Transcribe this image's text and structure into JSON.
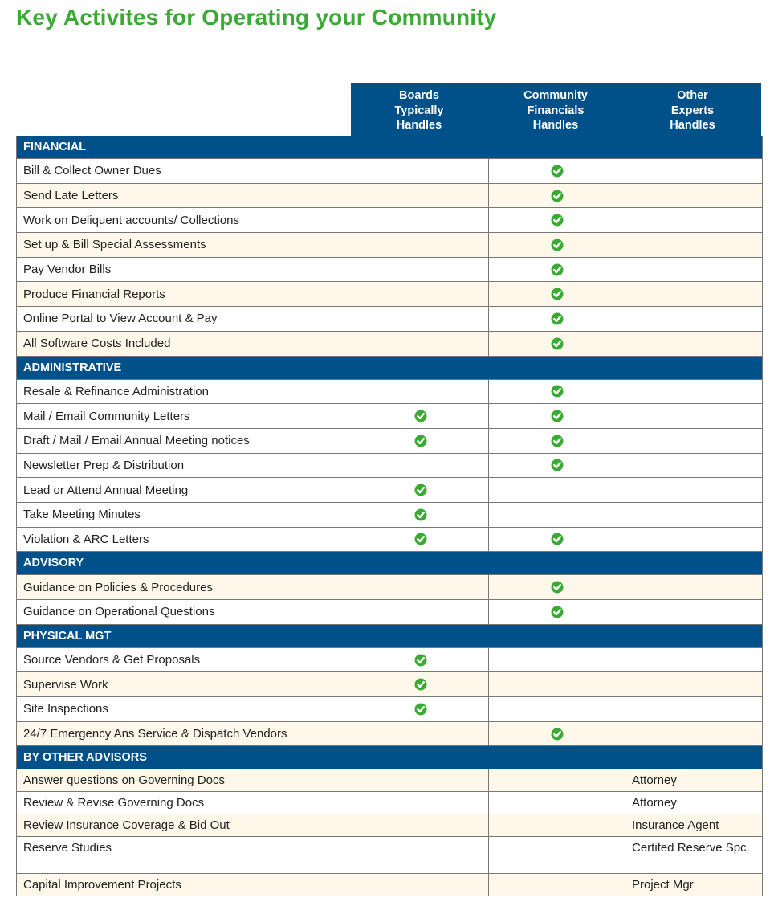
{
  "title": "Key Activites for Operating your Community",
  "colors": {
    "title": "#3aaa35",
    "header": "#00508a",
    "check": "#3aaa35",
    "shade": "#fdf8e9"
  },
  "columns": [
    "Boards\nTypically\nHandles",
    "Community\nFinancials\nHandles",
    "Other\nExperts\nHandles"
  ],
  "check_icon": "green-check-circle-icon",
  "sections": [
    {
      "name": "FINANCIAL",
      "rows": [
        {
          "label": "Bill & Collect Owner Dues",
          "boards": false,
          "cf": true,
          "other": "",
          "shaded": false
        },
        {
          "label": "Send Late Letters",
          "boards": false,
          "cf": true,
          "other": "",
          "shaded": true
        },
        {
          "label": "Work on Deliquent accounts/ Collections",
          "boards": false,
          "cf": true,
          "other": "",
          "shaded": false
        },
        {
          "label": "Set up & Bill Special Assessments",
          "boards": false,
          "cf": true,
          "other": "",
          "shaded": true
        },
        {
          "label": "Pay Vendor Bills",
          "boards": false,
          "cf": true,
          "other": "",
          "shaded": false
        },
        {
          "label": "Produce Financial Reports",
          "boards": false,
          "cf": true,
          "other": "",
          "shaded": true
        },
        {
          "label": "Online Portal to View Account & Pay",
          "boards": false,
          "cf": true,
          "other": "",
          "shaded": false
        },
        {
          "label": "All Software Costs Included",
          "boards": false,
          "cf": true,
          "other": "",
          "shaded": true
        }
      ]
    },
    {
      "name": "ADMINISTRATIVE",
      "rows": [
        {
          "label": "Resale & Refinance Administration",
          "boards": false,
          "cf": true,
          "other": "",
          "shaded": false
        },
        {
          "label": "Mail / Email Community Letters",
          "boards": true,
          "cf": true,
          "other": "",
          "shaded": false
        },
        {
          "label": "Draft / Mail / Email Annual Meeting notices",
          "boards": true,
          "cf": true,
          "other": "",
          "shaded": false
        },
        {
          "label": "Newsletter Prep & Distribution",
          "boards": false,
          "cf": true,
          "other": "",
          "shaded": false
        },
        {
          "label": "Lead or Attend Annual Meeting",
          "boards": true,
          "cf": false,
          "other": "",
          "shaded": false
        },
        {
          "label": "Take Meeting Minutes",
          "boards": true,
          "cf": false,
          "other": "",
          "shaded": false
        },
        {
          "label": "Violation & ARC Letters",
          "boards": true,
          "cf": true,
          "other": "",
          "shaded": false
        }
      ]
    },
    {
      "name": "ADVISORY",
      "rows": [
        {
          "label": "Guidance on Policies & Procedures",
          "boards": false,
          "cf": true,
          "other": "",
          "shaded": true
        },
        {
          "label": "Guidance on Operational Questions",
          "boards": false,
          "cf": true,
          "other": "",
          "shaded": false
        }
      ]
    },
    {
      "name": "PHYSICAL MGT",
      "rows": [
        {
          "label": "Source Vendors & Get Proposals",
          "boards": true,
          "cf": false,
          "other": "",
          "shaded": false
        },
        {
          "label": "Supervise Work",
          "boards": true,
          "cf": false,
          "other": "",
          "shaded": true
        },
        {
          "label": "Site Inspections",
          "boards": true,
          "cf": false,
          "other": "",
          "shaded": false
        },
        {
          "label": "24/7 Emergency Ans Service & Dispatch Vendors",
          "boards": false,
          "cf": true,
          "other": "",
          "shaded": true
        }
      ]
    },
    {
      "name": "BY OTHER ADVISORS",
      "rows": [
        {
          "label": "Answer questions on Governing Docs",
          "boards": false,
          "cf": false,
          "other": "Attorney",
          "shaded": true
        },
        {
          "label": "Review & Revise Governing Docs",
          "boards": false,
          "cf": false,
          "other": "Attorney",
          "shaded": false
        },
        {
          "label": "Review Insurance Coverage & Bid Out",
          "boards": false,
          "cf": false,
          "other": "Insurance Agent",
          "shaded": true
        },
        {
          "label": "Reserve Studies",
          "boards": false,
          "cf": false,
          "other": "Certifed Reserve Spc.",
          "shaded": false
        },
        {
          "label": "Capital Improvement Projects",
          "boards": false,
          "cf": false,
          "other": "Project Mgr",
          "shaded": true
        }
      ]
    }
  ]
}
